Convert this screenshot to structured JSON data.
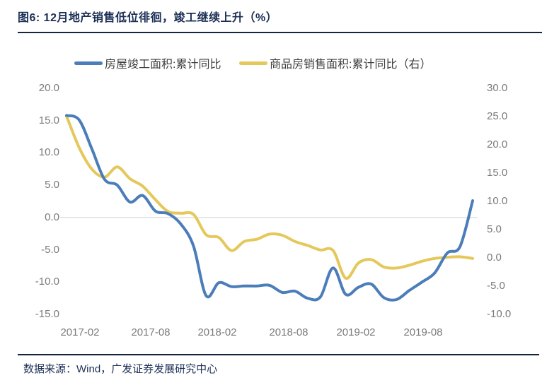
{
  "figure": {
    "title": "图6: 12月地产销售低位徘徊，竣工继续上升（%）",
    "source_note": "数据来源：Wind，广发证券发展研究中心"
  },
  "colors": {
    "title_navy": "#1b2f54",
    "divider_navy": "#14253f",
    "series_completed_blue": "#4b7dba",
    "series_sales_yellow": "#e5c85b",
    "axis_text_gray": "#7a7a7a",
    "zero_gridline_gray": "#dcdcdc"
  },
  "chart_data": {
    "type": "line",
    "title": "12月地产销售低位徘徊，竣工继续上升（%）",
    "grid": "zero-line-of-left-axis-only",
    "legend_position": "top",
    "categories": [
      "2017-02",
      "2017-03",
      "2017-04",
      "2017-05",
      "2017-06",
      "2017-07",
      "2017-08",
      "2017-09",
      "2017-10",
      "2017-11",
      "2017-12",
      "2018-02",
      "2018-03",
      "2018-04",
      "2018-05",
      "2018-06",
      "2018-07",
      "2018-08",
      "2018-09",
      "2018-10",
      "2018-11",
      "2018-12",
      "2019-02",
      "2019-03",
      "2019-04",
      "2019-05",
      "2019-06",
      "2019-07",
      "2019-08",
      "2019-09",
      "2019-10",
      "2019-11",
      "2019-12"
    ],
    "series": [
      {
        "name": "房屋竣工面积:累计同比",
        "axis": "left",
        "color": "#4b7dba",
        "values": [
          15.8,
          15.1,
          10.6,
          5.9,
          5.0,
          2.4,
          3.4,
          1.0,
          0.6,
          -1.0,
          -4.4,
          -12.1,
          -10.1,
          -10.7,
          -10.6,
          -10.6,
          -10.5,
          -11.6,
          -11.4,
          -12.5,
          -12.3,
          -7.8,
          -11.9,
          -10.8,
          -10.3,
          -12.4,
          -12.7,
          -11.3,
          -10.0,
          -8.6,
          -5.5,
          -4.5,
          2.6
        ]
      },
      {
        "name": "商品房销售面积:累计同比（右）",
        "axis": "right",
        "color": "#e5c85b",
        "values": [
          25.1,
          19.5,
          15.7,
          14.3,
          16.1,
          14.0,
          12.7,
          10.3,
          8.2,
          7.9,
          7.7,
          4.1,
          3.6,
          1.3,
          2.9,
          3.3,
          4.2,
          4.0,
          2.9,
          2.2,
          1.4,
          1.3,
          -3.6,
          -0.9,
          -0.3,
          -1.6,
          -1.8,
          -1.3,
          -0.6,
          -0.1,
          0.1,
          0.2,
          -0.1
        ]
      }
    ],
    "left_axis": {
      "max": 20,
      "min": -15,
      "tick_labels": [
        "20.0",
        "15.0",
        "10.0",
        "5.0",
        "0.0",
        "-5.0",
        "-10.0",
        "-15.0"
      ],
      "tick_values": [
        20,
        15,
        10,
        5,
        0,
        -5,
        -10,
        -15
      ]
    },
    "right_axis": {
      "max": 30,
      "min": -10,
      "tick_labels": [
        "30.0",
        "25.0",
        "20.0",
        "15.0",
        "10.0",
        "5.0",
        "0.0",
        "-5.0",
        "-10.0"
      ],
      "tick_values": [
        30,
        25,
        20,
        15,
        10,
        5,
        0,
        -5,
        -10
      ]
    },
    "x_tick_labels": [
      "2017-02",
      "2017-08",
      "2018-02",
      "2018-08",
      "2019-02",
      "2019-08"
    ],
    "x_tick_indices": [
      0,
      6,
      11,
      17,
      22,
      28
    ]
  }
}
